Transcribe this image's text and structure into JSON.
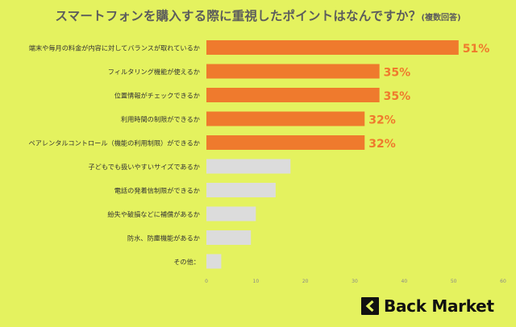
{
  "title": {
    "main": "スマートフォンを購入する際に重視したポイントはなんですか？",
    "sub": "(複数回答)"
  },
  "brand": {
    "name": "Back Market"
  },
  "colors": {
    "background": "#e4f25f",
    "highlight_bar": "#ef7a2d",
    "other_bar": "#dcdcdc",
    "value_label": "#ef7a2d"
  },
  "chart_data": {
    "type": "bar",
    "orientation": "horizontal",
    "categories": [
      "端末や毎月の料金が内容に対してバランスが取れているか",
      "フィルタリング機能が使えるか",
      "位置情報がチェックできるか",
      "利用時間の制限ができるか",
      "ペアレンタルコントロール（機能の利用制限）ができるか",
      "子どもでも扱いやすいサイズであるか",
      "電話の発着信制限ができるか",
      "紛失や破損などに補償があるか",
      "防水、防塵機能があるか",
      "その他："
    ],
    "values": [
      51,
      35,
      35,
      32,
      32,
      17,
      14,
      10,
      9,
      3
    ],
    "data_labels": [
      "51%",
      "35%",
      "35%",
      "32%",
      "32%",
      "",
      "",
      "",
      "",
      ""
    ],
    "highlighted_count": 5,
    "xlim": [
      0,
      60
    ],
    "xticks": [
      "0",
      "10",
      "20",
      "30",
      "40",
      "50",
      "60"
    ],
    "grid": false,
    "legend": "none"
  }
}
